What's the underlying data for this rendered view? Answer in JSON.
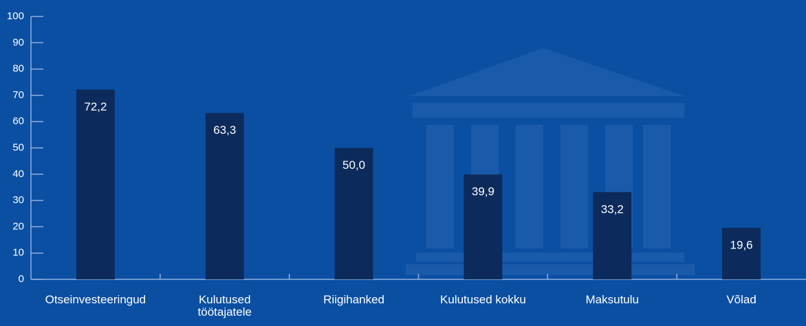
{
  "chart_data": {
    "type": "bar",
    "categories": [
      "Otseinvesteeringud",
      "Kulutused töötajatele",
      "Riigihanked",
      "Kulutused kokku",
      "Maksutulu",
      "Võlad"
    ],
    "values": [
      72.2,
      63.3,
      50.0,
      39.9,
      33.2,
      19.6
    ],
    "value_labels": [
      "72,2",
      "63,3",
      "50,0",
      "39,9",
      "33,2",
      "19,6"
    ],
    "color": "#0c2b5c",
    "ylim": [
      0,
      100
    ],
    "yticks": [
      0,
      10,
      20,
      30,
      40,
      50,
      60,
      70,
      80,
      90,
      100
    ]
  }
}
